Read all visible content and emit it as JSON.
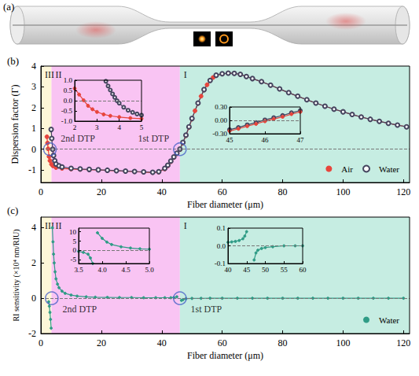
{
  "panel_a": {
    "label": "(a)"
  },
  "chart_data": [
    {
      "type": "line",
      "label": "(b)",
      "xlabel": "Fiber diameter (μm)",
      "ylabel": "Dispersion factor (Γ)",
      "xlim": [
        0,
        122
      ],
      "xticks": [
        0,
        20,
        40,
        60,
        80,
        100,
        120
      ],
      "ylim": [
        -1.6,
        4
      ],
      "yticks": [
        -1,
        0,
        1,
        2,
        3,
        4
      ],
      "grid": false,
      "legend": "lower right",
      "hlines": [
        0
      ],
      "regions": [
        {
          "label": "III",
          "from": 0,
          "to": 3.5,
          "color": "#fdf6d8"
        },
        {
          "label": "II",
          "from": 3.5,
          "to": 46,
          "color": "#f9c4f3"
        },
        {
          "label": "I",
          "from": 46,
          "to": 122,
          "color": "#c6ede2"
        }
      ],
      "annotations": [
        {
          "text": "2nd DTP",
          "x": 3,
          "y": 0
        },
        {
          "text": "1st DTP",
          "x": 46,
          "y": 0
        }
      ],
      "series": [
        {
          "name": "Air",
          "color": "#e8453c",
          "marker": "circle",
          "x": [
            2.0,
            2.2,
            2.4,
            2.7,
            3.0,
            3.5,
            4.0,
            5,
            7,
            10,
            13,
            16,
            19,
            22,
            25,
            28,
            31,
            34,
            37,
            39,
            41,
            42,
            43,
            44,
            45,
            46,
            47,
            48,
            49,
            50,
            51,
            52,
            53,
            54,
            55,
            56,
            57,
            58,
            60,
            62,
            64,
            66,
            68,
            70,
            73,
            76,
            79,
            82,
            85,
            88,
            91,
            94,
            97,
            100,
            103,
            106,
            109,
            112,
            115,
            118,
            121
          ],
          "values": [
            0.6,
            0.3,
            0.02,
            -0.35,
            -0.55,
            -0.72,
            -0.8,
            -0.88,
            -0.92,
            -0.95,
            -0.97,
            -0.98,
            -1.0,
            -1.02,
            -1.04,
            -1.06,
            -1.08,
            -1.1,
            -1.12,
            -1.1,
            -0.95,
            -0.8,
            -0.6,
            -0.4,
            -0.22,
            -0.02,
            0.3,
            0.65,
            1.05,
            1.45,
            1.85,
            2.2,
            2.55,
            2.85,
            3.1,
            3.3,
            3.45,
            3.55,
            3.62,
            3.66,
            3.65,
            3.6,
            3.5,
            3.4,
            3.25,
            3.08,
            2.9,
            2.72,
            2.55,
            2.38,
            2.22,
            2.07,
            1.93,
            1.8,
            1.67,
            1.55,
            1.44,
            1.34,
            1.25,
            1.16,
            1.08
          ]
        },
        {
          "name": "Water",
          "color": "#45455f",
          "marker": "open circle",
          "x": [
            3.4,
            3.6,
            3.9,
            4.2,
            4.6,
            5,
            6,
            7,
            10,
            13,
            16,
            19,
            22,
            25,
            28,
            31,
            34,
            37,
            39,
            41,
            42,
            43,
            44,
            45,
            46,
            47,
            48,
            49,
            50,
            52,
            54,
            56,
            58,
            60,
            62,
            64,
            66,
            68,
            70,
            73,
            76,
            79,
            82,
            85,
            88,
            91,
            94,
            97,
            100,
            103,
            106,
            109,
            112,
            115,
            118,
            121
          ],
          "values": [
            0.95,
            0.52,
            0.0,
            -0.3,
            -0.55,
            -0.71,
            -0.8,
            -0.85,
            -0.92,
            -0.95,
            -0.97,
            -0.99,
            -1.01,
            -1.03,
            -1.05,
            -1.07,
            -1.09,
            -1.11,
            -1.08,
            -0.92,
            -0.77,
            -0.57,
            -0.37,
            -0.19,
            0.01,
            0.33,
            0.68,
            1.08,
            1.48,
            2.22,
            2.87,
            3.31,
            3.56,
            3.63,
            3.66,
            3.65,
            3.6,
            3.5,
            3.4,
            3.25,
            3.08,
            2.9,
            2.72,
            2.55,
            2.38,
            2.22,
            2.07,
            1.93,
            1.8,
            1.67,
            1.55,
            1.44,
            1.34,
            1.25,
            1.16,
            1.08
          ]
        }
      ],
      "insets": [
        {
          "xlim": [
            2,
            5
          ],
          "xticks": [
            2,
            3,
            4,
            5
          ],
          "ylim": [
            -1,
            1
          ],
          "yticks": [
            {
              "value": -1,
              "label": "-1.0"
            },
            {
              "value": -0.5,
              "label": "-0.5"
            },
            {
              "value": 0,
              "label": "0.0"
            },
            {
              "value": 0.5,
              "label": "0.5"
            },
            {
              "value": 1,
              "label": "1.0"
            }
          ],
          "hlines": [
            0
          ],
          "series": [
            {
              "name": "Air",
              "color": "#e8453c",
              "marker": "circle",
              "x": [
                2.0,
                2.2,
                2.4,
                2.6,
                2.8,
                3.0,
                3.3,
                3.6,
                4.0,
                4.5,
                5.0
              ],
              "values": [
                0.6,
                0.3,
                0.02,
                -0.25,
                -0.42,
                -0.55,
                -0.67,
                -0.74,
                -0.8,
                -0.85,
                -0.88
              ]
            },
            {
              "name": "Water",
              "color": "#45455f",
              "marker": "open circle",
              "x": [
                3.4,
                3.5,
                3.6,
                3.7,
                3.8,
                3.9,
                4.0,
                4.2,
                4.4,
                4.6,
                4.8,
                5.0
              ],
              "values": [
                0.95,
                0.72,
                0.52,
                0.33,
                0.16,
                0.0,
                -0.12,
                -0.32,
                -0.47,
                -0.57,
                -0.65,
                -0.71
              ]
            }
          ]
        },
        {
          "xlim": [
            45,
            47
          ],
          "xticks": [
            45,
            46,
            47
          ],
          "ylim": [
            -0.3,
            0.3
          ],
          "yticks": [
            {
              "value": -0.3,
              "label": "-0.30"
            },
            {
              "value": 0,
              "label": "0.00"
            },
            {
              "value": 0.3,
              "label": "0.30"
            }
          ],
          "hlines": [
            0
          ],
          "series": [
            {
              "name": "Water",
              "color": "#45455f",
              "marker": "open circle",
              "x": [
                45,
                45.25,
                45.5,
                45.75,
                46,
                46.25,
                46.5,
                46.75,
                47
              ],
              "values": [
                -0.21,
                -0.16,
                -0.1,
                -0.05,
                0.01,
                0.06,
                0.11,
                0.17,
                0.22
              ]
            },
            {
              "name": "Air",
              "color": "#e8453c",
              "marker": "circle",
              "x": [
                45,
                45.25,
                45.5,
                45.75,
                46,
                46.25,
                46.5,
                46.75,
                47
              ],
              "values": [
                -0.24,
                -0.19,
                -0.13,
                -0.08,
                -0.02,
                0.03,
                0.08,
                0.14,
                0.19
              ]
            }
          ]
        }
      ]
    },
    {
      "type": "line",
      "label": "(c)",
      "xlabel": "Fiber diameter (μm)",
      "ylabel": "RI sensitivity (×10⁴ nm/RIU)",
      "xlim": [
        0,
        122
      ],
      "xticks": [
        0,
        20,
        40,
        60,
        80,
        100,
        120
      ],
      "ylim": [
        -2,
        4.6
      ],
      "yticks": [
        -2,
        0,
        2,
        4
      ],
      "grid": false,
      "legend": "lower right",
      "hlines": [
        0
      ],
      "regions": [
        {
          "label": "III",
          "from": 0,
          "to": 3.5,
          "color": "#fdf6d8"
        },
        {
          "label": "II",
          "from": 3.5,
          "to": 46,
          "color": "#f9c4f3"
        },
        {
          "label": "I",
          "from": 46,
          "to": 122,
          "color": "#c6ede2"
        }
      ],
      "annotations": [
        {
          "text": "2nd DTP",
          "x": 3.6,
          "y": 0
        },
        {
          "text": "1st DTP",
          "x": 46,
          "y": 0
        }
      ],
      "series": [
        {
          "name": "Water",
          "color": "#2f9c86",
          "marker": "dot",
          "x": [
            2.6,
            2.8,
            3.0,
            3.2,
            3.4,
            3.6,
            3.8,
            4.0,
            4.2,
            4.4,
            4.7,
            5,
            5.5,
            6,
            7,
            8,
            10,
            12,
            15,
            18,
            22,
            26,
            30,
            34,
            38,
            41,
            43,
            44,
            45,
            45.8,
            46.5,
            47,
            48,
            50,
            53,
            56,
            60,
            65,
            70,
            75,
            80,
            85,
            90,
            95,
            100,
            105,
            110,
            115,
            120
          ],
          "values": [
            -0.2,
            -0.45,
            -0.8,
            -1.2,
            -1.7,
            null,
            4.0,
            3.2,
            2.5,
            2.0,
            1.5,
            1.1,
            0.8,
            0.6,
            0.4,
            0.28,
            0.18,
            0.12,
            0.08,
            0.06,
            0.05,
            0.04,
            0.04,
            0.03,
            0.03,
            0.03,
            0.03,
            0.04,
            0.08,
            null,
            -0.12,
            -0.08,
            -0.025,
            -0.01,
            -0.005,
            0,
            0,
            0,
            0,
            0,
            0,
            0,
            0,
            0,
            0,
            0,
            0,
            0,
            0
          ]
        }
      ],
      "insets": [
        {
          "xlim": [
            3.5,
            5
          ],
          "xticks": [
            {
              "value": 3.5,
              "label": "3.5"
            },
            {
              "value": 4,
              "label": "4.0"
            },
            {
              "value": 4.5,
              "label": "4.5"
            },
            {
              "value": 5,
              "label": "5.0"
            }
          ],
          "ylim": [
            -7,
            12
          ],
          "yticks": [
            -5,
            0,
            5,
            10
          ],
          "hlines": [
            0
          ],
          "series": [
            {
              "name": "Water",
              "color": "#2f9c86",
              "marker": "dot",
              "x": [
                3.5,
                3.6,
                3.7,
                3.75,
                3.8,
                3.85,
                3.9,
                4.0,
                4.1,
                4.2,
                4.4,
                4.6,
                4.8,
                5.0
              ],
              "values": [
                -0.5,
                -1,
                -2,
                -4,
                -7,
                null,
                9.5,
                6.5,
                4.5,
                3.2,
                2.0,
                1.3,
                0.9,
                0.7
              ]
            }
          ]
        },
        {
          "xlim": [
            40,
            60
          ],
          "xticks": [
            40,
            45,
            50,
            55,
            60
          ],
          "ylim": [
            -0.1,
            0.1
          ],
          "yticks": [
            {
              "value": -0.1,
              "label": "-0.1"
            },
            {
              "value": 0,
              "label": "0.0"
            },
            {
              "value": 0.1,
              "label": "0.1"
            }
          ],
          "hlines": [
            0
          ],
          "series": [
            {
              "name": "Water",
              "color": "#2f9c86",
              "marker": "dot",
              "x": [
                40,
                41,
                42,
                43,
                44,
                44.5,
                45,
                46,
                47,
                47.5,
                48,
                49,
                50,
                52,
                55,
                58,
                60
              ],
              "values": [
                0.02,
                0.022,
                0.025,
                0.03,
                0.04,
                0.055,
                0.08,
                null,
                -0.08,
                -0.04,
                -0.025,
                -0.015,
                -0.01,
                -0.005,
                0,
                0,
                0
              ]
            }
          ]
        }
      ]
    }
  ]
}
